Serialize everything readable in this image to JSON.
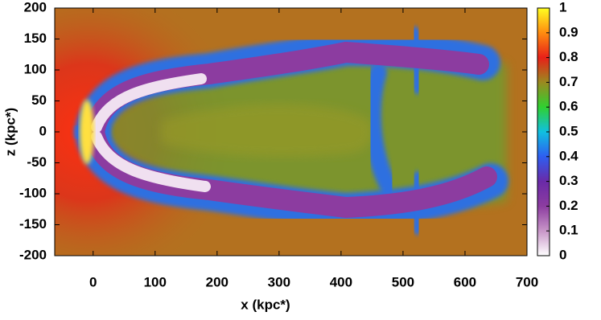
{
  "chart_data": {
    "type": "heatmap",
    "xlabel": "x (kpc*)",
    "ylabel": "z (kpc*)",
    "xlim": [
      -62,
      700
    ],
    "xticks": [
      0,
      100,
      200,
      300,
      400,
      500,
      600,
      700
    ],
    "ylim": [
      -200,
      200
    ],
    "yticks": [
      -200,
      -150,
      -100,
      -50,
      0,
      50,
      100,
      150,
      200
    ],
    "zlim": [
      0,
      1
    ],
    "zticks": [
      0,
      0.1,
      0.2,
      0.3,
      0.4,
      0.5,
      0.6,
      0.7,
      0.8,
      0.9,
      1
    ],
    "colormap": [
      "#ffffff",
      "#c896c8",
      "#8c3ca0",
      "#6a2aa8",
      "#2e5ef0",
      "#10c0e0",
      "#30d030",
      "#9a8a20",
      "#e82018",
      "#ff8c10",
      "#ffff20"
    ]
  }
}
